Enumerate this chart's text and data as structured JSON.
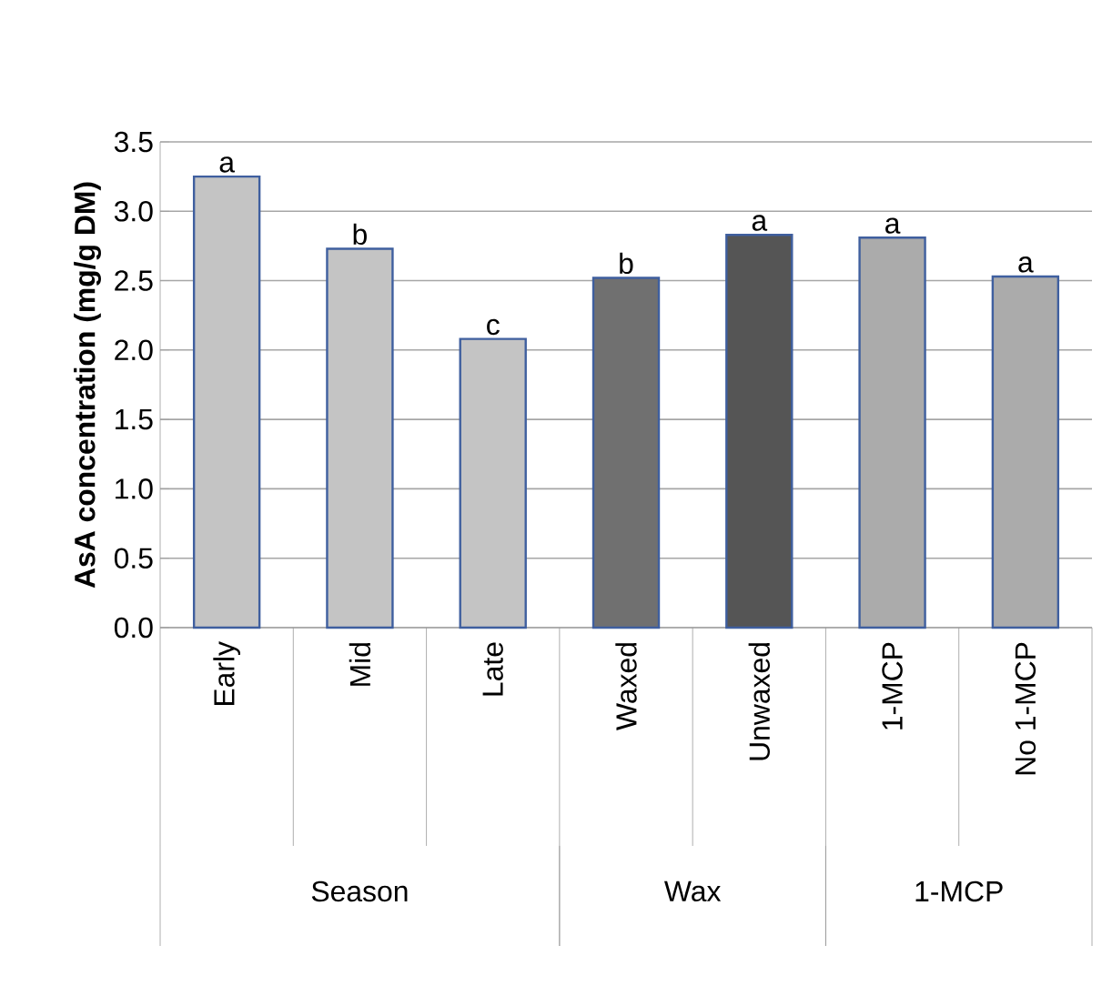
{
  "chart_data": {
    "type": "bar",
    "ylabel": "AsA concentration (mg/g DM)",
    "categories": [
      "Early",
      "Mid",
      "Late",
      "Waxed",
      "Unwaxed",
      "1-MCP",
      "No 1-MCP"
    ],
    "values": [
      3.25,
      2.73,
      2.08,
      2.52,
      2.83,
      2.81,
      2.53
    ],
    "colors": [
      "#c4c4c4",
      "#c4c4c4",
      "#c4c4c4",
      "#707070",
      "#555555",
      "#ababab",
      "#ababab"
    ],
    "ylim": [
      0,
      3.5
    ],
    "yticks": [
      {
        "value": 0,
        "label": "0.0"
      },
      {
        "value": 0.5,
        "label": "0.5"
      },
      {
        "value": 1,
        "label": "1.0"
      },
      {
        "value": 1.5,
        "label": "1.5"
      },
      {
        "value": 2,
        "label": "2.0"
      },
      {
        "value": 2.5,
        "label": "2.5"
      },
      {
        "value": 3,
        "label": "3.0"
      },
      {
        "value": 3.5,
        "label": "3.5"
      }
    ],
    "grid": "y",
    "annotations": [
      {
        "text": "a",
        "x": "Early",
        "y": 3.25
      },
      {
        "text": "b",
        "x": "Mid",
        "y": 2.73
      },
      {
        "text": "c",
        "x": "Late",
        "y": 2.08
      },
      {
        "text": "b",
        "x": "Waxed",
        "y": 2.52
      },
      {
        "text": "a",
        "x": "Unwaxed",
        "y": 2.83
      },
      {
        "text": "a",
        "x": "1-MCP",
        "y": 2.81
      },
      {
        "text": "a",
        "x": "No 1-MCP",
        "y": 2.53
      },
      "Season",
      "Wax",
      "1-MCP"
    ]
  }
}
